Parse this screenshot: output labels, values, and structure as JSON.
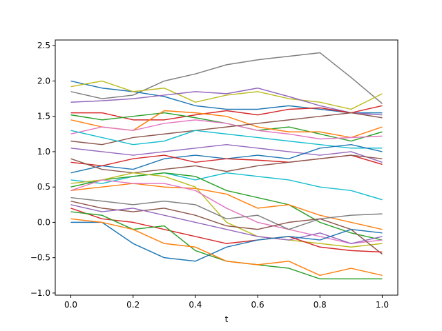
{
  "chart_data": {
    "type": "line",
    "title": "",
    "xlabel": "t",
    "ylabel": "",
    "xlim": [
      -0.05,
      1.05
    ],
    "ylim": [
      -1.03,
      2.58
    ],
    "xticks": [
      0.0,
      0.2,
      0.4,
      0.6,
      0.8,
      1.0
    ],
    "xtick_labels": [
      "0.0",
      "0.2",
      "0.4",
      "0.6",
      "0.8",
      "1.0"
    ],
    "yticks": [
      -1.0,
      -0.5,
      0.0,
      0.5,
      1.0,
      1.5,
      2.0,
      2.5
    ],
    "ytick_labels": [
      "−1.0",
      "−0.5",
      "0.0",
      "0.5",
      "1.0",
      "1.5",
      "2.0",
      "2.5"
    ],
    "grid": false,
    "legend": "none",
    "x": [
      0.0,
      0.1,
      0.2,
      0.3,
      0.4,
      0.5,
      0.6,
      0.7,
      0.8,
      0.9,
      1.0
    ],
    "series": [
      {
        "color": "#7f7f7f",
        "values": [
          1.85,
          1.75,
          1.8,
          2.0,
          2.1,
          2.23,
          2.3,
          2.35,
          2.4,
          2.05,
          1.68
        ]
      },
      {
        "color": "#1f77b4",
        "values": [
          2.0,
          1.9,
          1.85,
          1.78,
          1.65,
          1.6,
          1.6,
          1.65,
          1.6,
          1.55,
          1.55
        ]
      },
      {
        "color": "#bcbd22",
        "values": [
          1.92,
          2.0,
          1.85,
          1.9,
          1.7,
          1.8,
          1.85,
          1.75,
          1.7,
          1.6,
          1.82
        ]
      },
      {
        "color": "#9467bd",
        "values": [
          1.7,
          1.72,
          1.75,
          1.8,
          1.85,
          1.82,
          1.9,
          1.78,
          1.65,
          1.55,
          1.52
        ]
      },
      {
        "color": "#d62728",
        "values": [
          1.55,
          1.55,
          1.45,
          1.45,
          1.52,
          1.58,
          1.52,
          1.6,
          1.62,
          1.55,
          1.65
        ]
      },
      {
        "color": "#2ca02c",
        "values": [
          1.52,
          1.45,
          1.5,
          1.55,
          1.48,
          1.4,
          1.3,
          1.35,
          1.25,
          1.15,
          1.28
        ]
      },
      {
        "color": "#ff7f0e",
        "values": [
          1.45,
          1.35,
          1.3,
          1.58,
          1.55,
          1.5,
          1.35,
          1.28,
          1.28,
          1.2,
          1.35
        ]
      },
      {
        "color": "#e377c2",
        "values": [
          1.25,
          1.35,
          1.3,
          1.4,
          1.45,
          1.4,
          1.3,
          1.25,
          1.18,
          1.2,
          1.22
        ]
      },
      {
        "color": "#8c564b",
        "values": [
          1.15,
          1.1,
          1.2,
          1.25,
          1.3,
          1.35,
          1.4,
          1.45,
          1.5,
          1.55,
          1.48
        ]
      },
      {
        "color": "#17becf",
        "values": [
          1.3,
          1.2,
          1.1,
          1.15,
          1.3,
          1.25,
          1.2,
          1.15,
          1.1,
          1.05,
          1.05
        ]
      },
      {
        "color": "#9467bd",
        "values": [
          1.05,
          1.0,
          0.95,
          1.0,
          1.05,
          1.1,
          1.05,
          1.0,
          0.95,
          1.0,
          0.85
        ]
      },
      {
        "color": "#1f77b4",
        "values": [
          0.7,
          0.8,
          0.75,
          0.9,
          0.95,
          0.9,
          0.95,
          0.9,
          1.05,
          1.1,
          1.0
        ]
      },
      {
        "color": "#d62728",
        "values": [
          0.85,
          0.8,
          0.9,
          0.95,
          0.85,
          0.9,
          0.88,
          0.85,
          0.9,
          0.95,
          0.82
        ]
      },
      {
        "color": "#8c564b",
        "values": [
          0.9,
          0.75,
          0.7,
          0.75,
          0.8,
          0.72,
          0.8,
          0.85,
          0.9,
          0.95,
          0.9
        ]
      },
      {
        "color": "#17becf",
        "values": [
          0.6,
          0.55,
          0.65,
          0.7,
          0.6,
          0.7,
          0.65,
          0.6,
          0.5,
          0.45,
          0.32
        ]
      },
      {
        "color": "#2ca02c",
        "values": [
          0.5,
          0.6,
          0.65,
          0.7,
          0.65,
          0.45,
          0.35,
          0.25,
          0.0,
          -0.15,
          -0.25
        ]
      },
      {
        "color": "#ff7f0e",
        "values": [
          0.45,
          0.5,
          0.55,
          0.5,
          0.48,
          0.4,
          0.2,
          0.25,
          0.1,
          0.0,
          -0.1
        ]
      },
      {
        "color": "#bcbd22",
        "values": [
          0.55,
          0.6,
          0.7,
          0.65,
          0.5,
          0.0,
          -0.2,
          -0.25,
          -0.3,
          -0.35,
          -0.3
        ]
      },
      {
        "color": "#e377c2",
        "values": [
          0.45,
          0.6,
          0.55,
          0.55,
          0.45,
          0.2,
          0.0,
          -0.1,
          -0.2,
          -0.3,
          -0.25
        ]
      },
      {
        "color": "#7f7f7f",
        "values": [
          0.35,
          0.3,
          0.25,
          0.3,
          0.25,
          0.05,
          0.1,
          -0.1,
          0.05,
          0.1,
          0.12
        ]
      },
      {
        "color": "#8c564b",
        "values": [
          0.3,
          0.2,
          0.15,
          0.2,
          0.1,
          -0.05,
          -0.1,
          0.0,
          0.05,
          -0.1,
          -0.45
        ]
      },
      {
        "color": "#9467bd",
        "values": [
          0.25,
          0.15,
          0.2,
          0.1,
          0.0,
          -0.1,
          -0.2,
          -0.25,
          -0.15,
          -0.3,
          -0.2
        ]
      },
      {
        "color": "#d62728",
        "values": [
          0.2,
          0.05,
          0.0,
          -0.1,
          -0.2,
          -0.3,
          -0.25,
          -0.2,
          -0.35,
          -0.4,
          -0.42
        ]
      },
      {
        "color": "#2ca02c",
        "values": [
          0.15,
          0.1,
          -0.1,
          -0.05,
          -0.4,
          -0.55,
          -0.6,
          -0.65,
          -0.8,
          -0.8,
          -0.8
        ]
      },
      {
        "color": "#1f77b4",
        "values": [
          0.0,
          0.0,
          -0.3,
          -0.5,
          -0.55,
          -0.35,
          -0.25,
          -0.2,
          -0.25,
          -0.1,
          -0.15
        ]
      },
      {
        "color": "#ff7f0e",
        "values": [
          0.05,
          0.0,
          -0.1,
          -0.3,
          -0.35,
          -0.55,
          -0.6,
          -0.55,
          -0.75,
          -0.65,
          -0.75
        ]
      }
    ]
  }
}
